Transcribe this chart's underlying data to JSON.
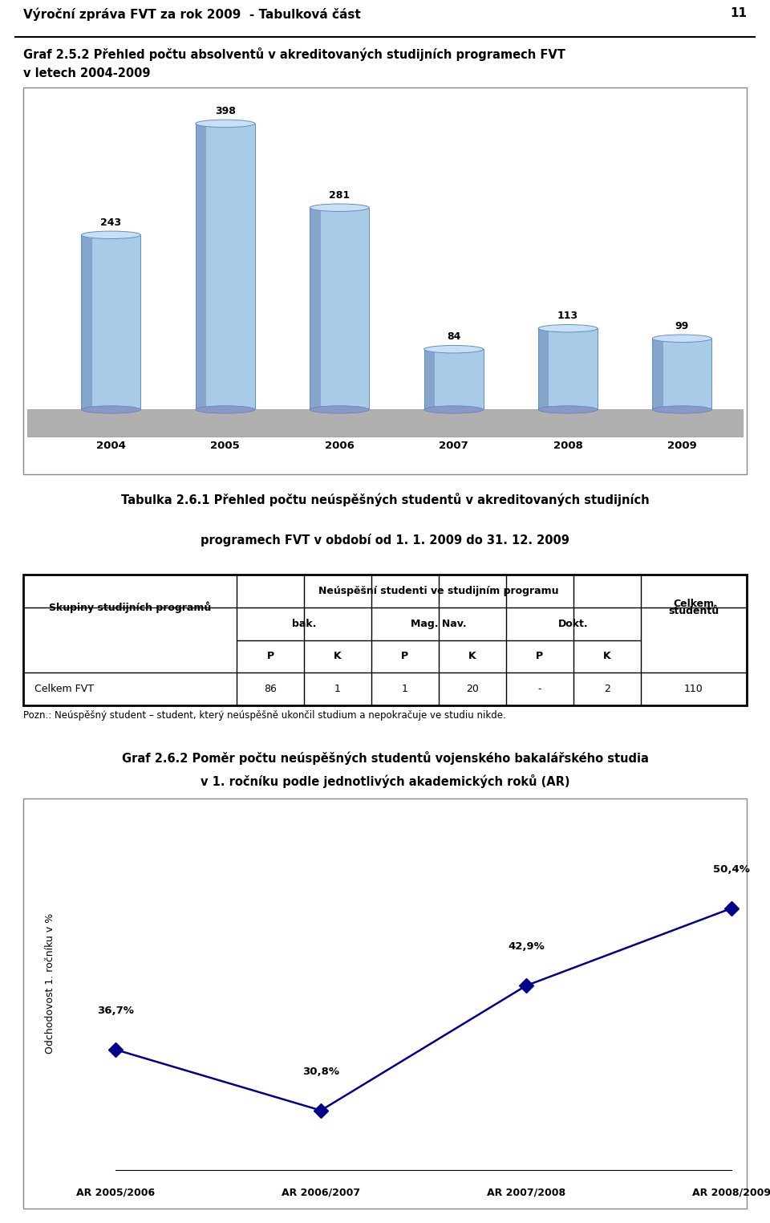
{
  "page_header": "Výroční zpráva FVT za rok 2009  - Tabulková část",
  "page_number": "11",
  "chart1_title_line1": "Graf 2.5.2 Přehled počtu absolventů v akreditovaných studijních programech FVT",
  "chart1_title_line2": "v letech 2004-2009",
  "chart1_categories": [
    "2004",
    "2005",
    "2006",
    "2007",
    "2008",
    "2009"
  ],
  "chart1_values": [
    243,
    398,
    281,
    84,
    113,
    99
  ],
  "table_title_line1": "Tabulka 2.6.1 Přehled počtu neúspěšných studentů v akreditovaných studijních",
  "table_title_line2": "programech FVT v období od 1. 1. 2009 do 31. 12. 2009",
  "table_header_skupiny": "Skupiny studijních programů",
  "table_header_neuspesni": "Neúspěšní studenti ve studijním programu",
  "table_header_bak": "bak.",
  "table_header_magnav": "Mag. Nav.",
  "table_header_dokt": "Dokt.",
  "table_header_celkem1": "Celkem",
  "table_header_celkem2": "studentů",
  "table_pk": [
    "P",
    "K",
    "P",
    "K",
    "P",
    "K"
  ],
  "table_data_label": "Celkem FVT",
  "table_data_values": [
    "86",
    "1",
    "1",
    "20",
    "-",
    "2",
    "110"
  ],
  "table_note": "Pozn.: Neúspěšný student – student, který neúspěšně ukončil studium a nepokračuje ve studiu nikde.",
  "chart2_title_line1": "Graf 2.6.2 Poměr počtu neúspěšných studentů vojenského bakalářského studia",
  "chart2_title_line2": "v 1. ročníku podle jednotlivých akademických roků (AR)",
  "chart2_ylabel": "Odchodovost 1. ročníku v %",
  "chart2_categories": [
    "AR 2005/2006",
    "AR 2006/2007",
    "AR 2007/2008",
    "AR 2008/2009"
  ],
  "chart2_values": [
    36.7,
    30.8,
    42.9,
    50.4
  ],
  "chart2_labels": [
    "36,7%",
    "30,8%",
    "42,9%",
    "50,4%"
  ],
  "chart2_line_color": "#00008B",
  "background_color": "#ffffff"
}
